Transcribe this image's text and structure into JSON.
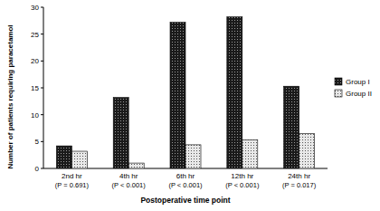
{
  "chart_data": {
    "type": "bar",
    "x_label": "Postoperative time point",
    "y_label": "Number of patients requiring paracetamol",
    "categories": [
      "2nd hr",
      "4th hr",
      "6th hr",
      "12th hr",
      "24th hr"
    ],
    "annotations": [
      "(P = 0.691)",
      "(P < 0.001)",
      "(P < 0.001)",
      "(P < 0.001)",
      "(P = 0.017)"
    ],
    "series": [
      {
        "name": "Group I",
        "color": "#1a1a1a",
        "values": [
          4.2,
          13.2,
          27.2,
          28.2,
          15.3
        ]
      },
      {
        "name": "Group II",
        "color": "#e8e8e8",
        "values": [
          3.2,
          1.0,
          4.4,
          5.3,
          6.5
        ]
      }
    ],
    "ylim": [
      0,
      30
    ],
    "yticks": [
      0,
      5,
      10,
      15,
      20,
      25,
      30
    ],
    "grid": false,
    "legend": "right"
  }
}
